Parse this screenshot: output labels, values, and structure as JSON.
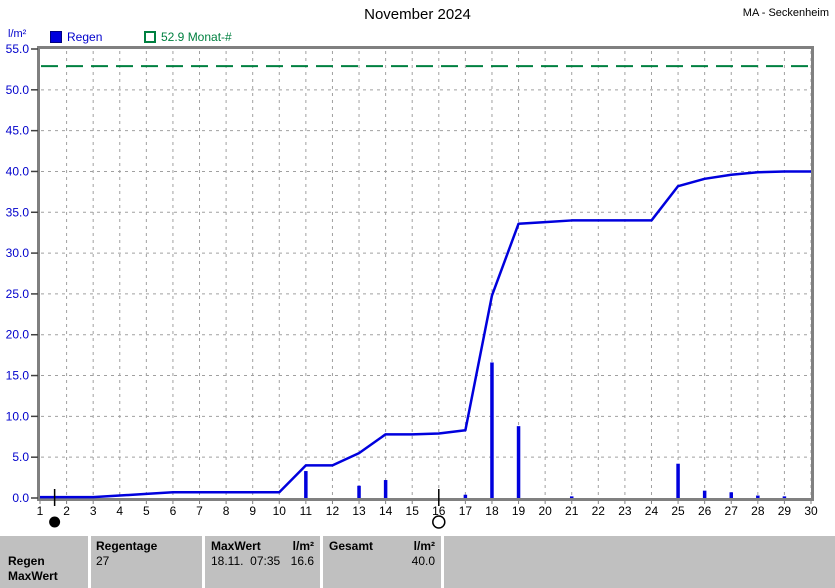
{
  "header": {
    "title": "November 2024",
    "station": "MA - Seckenheim"
  },
  "legend": {
    "unit_label": "l/m²",
    "rain_label": "Regen",
    "month_norm_label": "52.9 Monat-#"
  },
  "colors": {
    "rain_blue": "#0000dd",
    "axis_label_blue": "#0000cc",
    "month_norm_green": "#008040",
    "grid_gray": "#a0a0a0",
    "frame_gray": "#808080",
    "table_bg": "#c0c0c0"
  },
  "chart_data": {
    "type": "line+bar",
    "title": "November 2024",
    "xlabel": "",
    "ylabel": "l/m²",
    "ylim": [
      0,
      55
    ],
    "ytick_step": 5,
    "xlim": [
      1,
      30
    ],
    "grid": true,
    "x": [
      1,
      2,
      3,
      4,
      5,
      6,
      7,
      8,
      9,
      10,
      11,
      12,
      13,
      14,
      15,
      16,
      17,
      18,
      19,
      20,
      21,
      22,
      23,
      24,
      25,
      26,
      27,
      28,
      29,
      30
    ],
    "series": [
      {
        "name": "Regen kumuliert",
        "type": "line",
        "values": [
          0.1,
          0.1,
          0.1,
          0.3,
          0.5,
          0.7,
          0.7,
          0.7,
          0.7,
          0.7,
          4.0,
          4.0,
          5.5,
          7.8,
          7.8,
          7.9,
          8.3,
          24.8,
          33.6,
          33.8,
          34.0,
          34.0,
          34.0,
          34.0,
          38.2,
          39.1,
          39.6,
          39.9,
          40.0,
          40.0
        ]
      },
      {
        "name": "Regen täglich",
        "type": "bar",
        "values": [
          0,
          0,
          0,
          0,
          0,
          0,
          0,
          0,
          0,
          0,
          3.3,
          0,
          1.5,
          2.2,
          0,
          0,
          0.4,
          16.6,
          8.8,
          0,
          0.2,
          0,
          0,
          0,
          4.2,
          0.9,
          0.7,
          0.3,
          0.2,
          0
        ]
      }
    ],
    "reference_line": {
      "label": "52.9 Monat-#",
      "value": 52.9
    },
    "markers": [
      {
        "name": "new-moon",
        "day": 1.55
      },
      {
        "name": "full-moon",
        "day": 16
      }
    ]
  },
  "table": {
    "row_labels": {
      "r1": "Regen",
      "r2": "MaxWert"
    },
    "regentage": {
      "header": "Regentage",
      "value": "27"
    },
    "maxwert": {
      "header_left": "MaxWert",
      "header_right": "l/m²",
      "value_left": "18.11.  07:35",
      "value_right": "16.6"
    },
    "gesamt": {
      "header_left": "Gesamt",
      "header_right": "l/m²",
      "value_right": "40.0"
    }
  }
}
